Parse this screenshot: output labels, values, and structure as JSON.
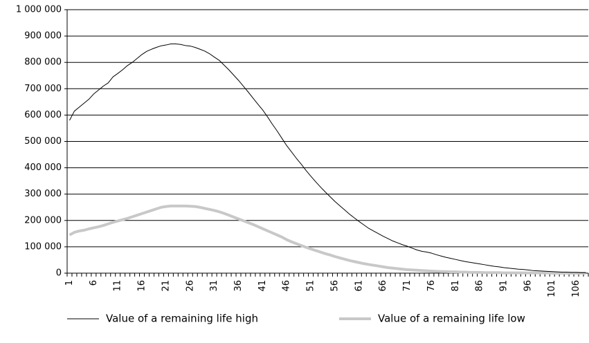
{
  "chart_data": {
    "type": "line",
    "categories": [
      "1",
      null,
      null,
      null,
      null,
      "6",
      null,
      null,
      null,
      null,
      "11",
      null,
      null,
      null,
      null,
      "16",
      null,
      null,
      null,
      null,
      "21",
      null,
      null,
      null,
      null,
      "26",
      null,
      null,
      null,
      null,
      "31",
      null,
      null,
      null,
      null,
      "36",
      null,
      null,
      null,
      null,
      "41",
      null,
      null,
      null,
      null,
      "46",
      null,
      null,
      null,
      null,
      "51",
      null,
      null,
      null,
      null,
      "56",
      null,
      null,
      null,
      null,
      "61",
      null,
      null,
      null,
      null,
      "66",
      null,
      null,
      null,
      null,
      "71",
      null,
      null,
      null,
      null,
      "76",
      null,
      null,
      null,
      null,
      "81",
      null,
      null,
      null,
      null,
      "86",
      null,
      null,
      null,
      null,
      "91",
      null,
      null,
      null,
      null,
      "96",
      null,
      null,
      null,
      null,
      "101",
      null,
      null,
      null,
      null,
      "106",
      null,
      null
    ],
    "series": [
      {
        "name": "Value of a remaining life high",
        "color": "#000000",
        "line_width": 1,
        "values": [
          580000,
          615000,
          630000,
          645000,
          660000,
          680000,
          695000,
          710000,
          722000,
          745000,
          758000,
          772000,
          788000,
          800000,
          815000,
          830000,
          842000,
          850000,
          857000,
          863000,
          866000,
          870000,
          870000,
          868000,
          864000,
          862000,
          857000,
          850000,
          843000,
          833000,
          820000,
          808000,
          790000,
          772000,
          752000,
          732000,
          710000,
          688000,
          665000,
          642000,
          620000,
          594000,
          566000,
          540000,
          512000,
          484000,
          460000,
          436000,
          414000,
          390000,
          368000,
          347000,
          327000,
          308000,
          290000,
          272000,
          256000,
          240000,
          224000,
          210000,
          196000,
          183000,
          170000,
          160000,
          150000,
          140000,
          131000,
          122000,
          115000,
          108000,
          102000,
          95000,
          88000,
          83000,
          80000,
          76000,
          70000,
          65000,
          60000,
          56000,
          52000,
          48000,
          44000,
          41000,
          38000,
          35000,
          32000,
          29000,
          26000,
          24000,
          21000,
          19000,
          17000,
          15000,
          14000,
          12000,
          10000,
          9000,
          8000,
          7000,
          6000,
          5000,
          4000,
          4000,
          3000,
          3000,
          2000,
          2000
        ]
      },
      {
        "name": "Value of a remaining life low",
        "color": "#c8c8c8",
        "line_width": 4,
        "values": [
          145000,
          155000,
          160000,
          163000,
          168000,
          172000,
          176000,
          181000,
          187000,
          193000,
          198000,
          203000,
          208000,
          214000,
          220000,
          226000,
          232000,
          238000,
          244000,
          250000,
          253000,
          255000,
          255000,
          255000,
          255000,
          254000,
          253000,
          250000,
          246000,
          242000,
          238000,
          233000,
          227000,
          220000,
          213000,
          206000,
          199000,
          192000,
          185000,
          177000,
          169000,
          161000,
          153000,
          145000,
          137000,
          127000,
          119000,
          112000,
          105000,
          98000,
          92000,
          86000,
          80000,
          74000,
          69000,
          63000,
          58000,
          53000,
          48000,
          44000,
          40000,
          36000,
          33000,
          30000,
          27000,
          24000,
          21000,
          19000,
          17000,
          15000,
          13000,
          12000,
          11000,
          10000,
          9000,
          8000,
          7000,
          6000,
          6000,
          5000,
          5000,
          4000,
          4000,
          3000,
          3000,
          3000,
          2000,
          2000,
          2000,
          2000,
          1000,
          1000,
          1000,
          1000,
          1000,
          1000,
          1000,
          1000,
          1000,
          1000,
          0,
          0,
          0,
          0,
          0,
          0,
          0,
          0
        ]
      }
    ],
    "ylim": [
      0,
      1000000
    ],
    "yticks": [
      0,
      {
        "value": 100000,
        "label": "100 000"
      },
      {
        "value": 200000,
        "label": "200 000"
      },
      {
        "value": 300000,
        "label": "300 000"
      },
      {
        "value": 400000,
        "label": "400 000"
      },
      {
        "value": 500000,
        "label": "500 000"
      },
      {
        "value": 600000,
        "label": "600 000"
      },
      {
        "value": 700000,
        "label": "700 000"
      },
      {
        "value": 800000,
        "label": "800 000"
      },
      {
        "value": 900000,
        "label": "900 000"
      },
      {
        "value": 1000000,
        "label": "1 000 000"
      }
    ],
    "grid": true,
    "legend": "bottom"
  }
}
